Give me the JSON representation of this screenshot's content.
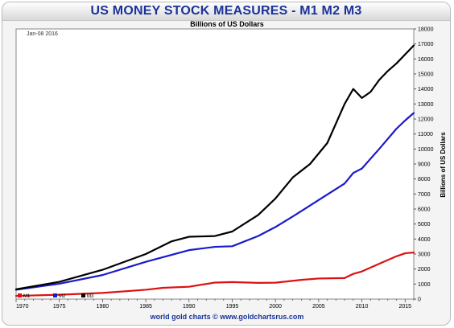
{
  "chart_data": {
    "type": "line",
    "title": "US MONEY STOCK MEASURES - M1 M2 M3",
    "subtitle": "Billions of US Dollars",
    "ylabel": "Billions of US Dollars",
    "xlabel": "",
    "date_note": "Jan-08 2016",
    "source": "world gold charts © www.goldchartsrus.com",
    "xlim": [
      1970,
      2016
    ],
    "ylim": [
      0,
      18000
    ],
    "x_ticks": [
      "1970",
      "1975",
      "1980",
      "1985",
      "1990",
      "1995",
      "2000",
      "2005",
      "2010",
      "2015"
    ],
    "y_ticks": [
      "0",
      "1000",
      "2000",
      "3000",
      "4000",
      "5000",
      "6000",
      "7000",
      "8000",
      "9000",
      "10000",
      "11000",
      "12000",
      "13000",
      "14000",
      "15000",
      "16000",
      "17000",
      "18000"
    ],
    "grid": false,
    "legend": "bottom-left",
    "series": [
      {
        "name": "M1",
        "color": "#dd1111",
        "points": [
          [
            1970,
            210
          ],
          [
            1975,
            290
          ],
          [
            1980,
            410
          ],
          [
            1985,
            620
          ],
          [
            1987,
            750
          ],
          [
            1990,
            820
          ],
          [
            1993,
            1100
          ],
          [
            1995,
            1130
          ],
          [
            1998,
            1080
          ],
          [
            2000,
            1090
          ],
          [
            2003,
            1280
          ],
          [
            2005,
            1370
          ],
          [
            2008,
            1400
          ],
          [
            2009,
            1680
          ],
          [
            2010,
            1840
          ],
          [
            2012,
            2350
          ],
          [
            2014,
            2850
          ],
          [
            2015,
            3050
          ],
          [
            2016,
            3100
          ]
        ]
      },
      {
        "name": "M2",
        "color": "#1a1acc",
        "points": [
          [
            1970,
            620
          ],
          [
            1975,
            1020
          ],
          [
            1980,
            1600
          ],
          [
            1985,
            2480
          ],
          [
            1990,
            3260
          ],
          [
            1993,
            3480
          ],
          [
            1995,
            3520
          ],
          [
            1998,
            4200
          ],
          [
            2000,
            4800
          ],
          [
            2002,
            5500
          ],
          [
            2005,
            6600
          ],
          [
            2008,
            7700
          ],
          [
            2009,
            8400
          ],
          [
            2010,
            8700
          ],
          [
            2012,
            10000
          ],
          [
            2014,
            11350
          ],
          [
            2015,
            11900
          ],
          [
            2016,
            12400
          ]
        ]
      },
      {
        "name": "M3",
        "color": "#000000",
        "points": [
          [
            1970,
            650
          ],
          [
            1975,
            1150
          ],
          [
            1980,
            1950
          ],
          [
            1985,
            3000
          ],
          [
            1988,
            3850
          ],
          [
            1990,
            4150
          ],
          [
            1993,
            4200
          ],
          [
            1995,
            4500
          ],
          [
            1998,
            5600
          ],
          [
            2000,
            6700
          ],
          [
            2002,
            8100
          ],
          [
            2004,
            9000
          ],
          [
            2006,
            10400
          ],
          [
            2008,
            13000
          ],
          [
            2009,
            14000
          ],
          [
            2010,
            13400
          ],
          [
            2011,
            13800
          ],
          [
            2012,
            14600
          ],
          [
            2013,
            15200
          ],
          [
            2014,
            15700
          ],
          [
            2015,
            16300
          ],
          [
            2016,
            16900
          ]
        ]
      }
    ]
  }
}
